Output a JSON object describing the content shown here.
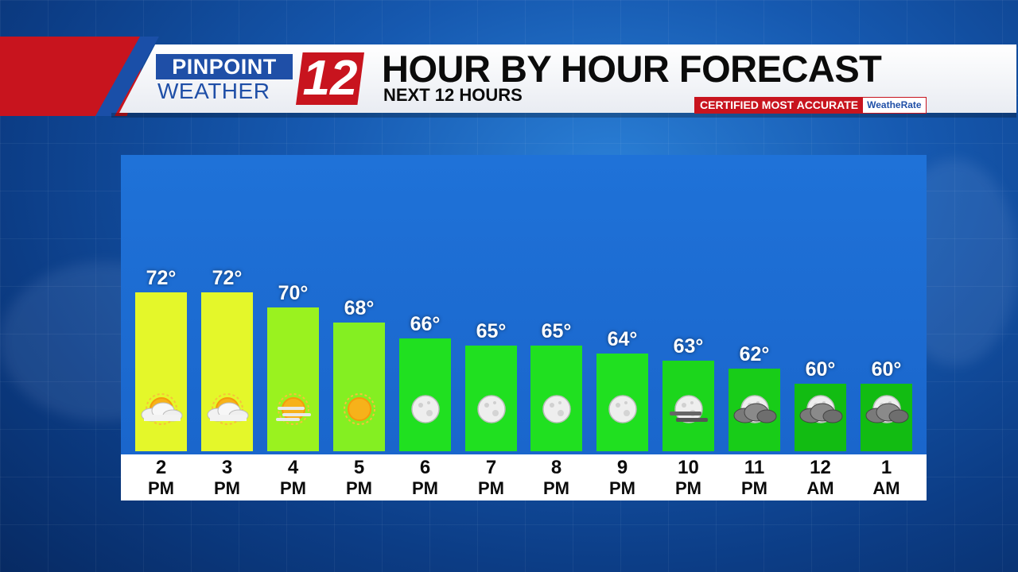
{
  "branding": {
    "logo_top": "PINPOINT",
    "logo_bottom": "WEATHER",
    "logo_number": "12",
    "certified": "CERTIFIED MOST ACCURATE",
    "certified_brand": "WeatheRate"
  },
  "header": {
    "title": "HOUR BY HOUR FORECAST",
    "subtitle": "NEXT 12 HOURS"
  },
  "chart_data": {
    "type": "bar",
    "categories": [
      "2 PM",
      "3 PM",
      "4 PM",
      "5 PM",
      "6 PM",
      "7 PM",
      "8 PM",
      "9 PM",
      "10 PM",
      "11 PM",
      "12 AM",
      "1 AM"
    ],
    "hours": [
      "2",
      "3",
      "4",
      "5",
      "6",
      "7",
      "8",
      "9",
      "10",
      "11",
      "12",
      "1"
    ],
    "periods": [
      "PM",
      "PM",
      "PM",
      "PM",
      "PM",
      "PM",
      "PM",
      "PM",
      "PM",
      "PM",
      "AM",
      "AM"
    ],
    "values": [
      72,
      72,
      70,
      68,
      66,
      65,
      65,
      64,
      63,
      62,
      60,
      60
    ],
    "value_labels": [
      "72°",
      "72°",
      "70°",
      "68°",
      "66°",
      "65°",
      "65°",
      "64°",
      "63°",
      "62°",
      "60°",
      "60°"
    ],
    "conditions": [
      "partly-cloudy-day",
      "partly-cloudy-day",
      "hazy-sun",
      "sunny",
      "clear-night",
      "clear-night",
      "clear-night",
      "clear-night",
      "hazy-night",
      "partly-cloudy-night",
      "partly-cloudy-night",
      "partly-cloudy-night"
    ],
    "colors": [
      "#e4f72a",
      "#e4f72a",
      "#9af21f",
      "#84ef22",
      "#20e020",
      "#20e020",
      "#20e020",
      "#20e020",
      "#1cd61c",
      "#18cc18",
      "#12bc12",
      "#12bc12"
    ],
    "ylabel": "",
    "xlabel": ""
  }
}
